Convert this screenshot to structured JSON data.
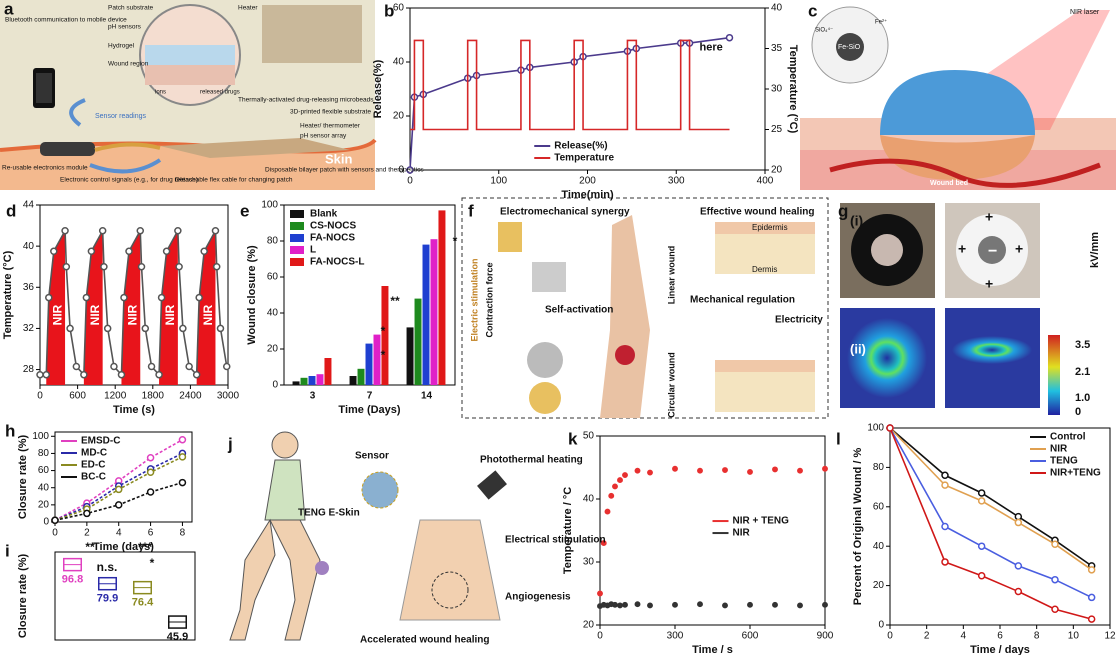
{
  "chart_data": [
    {
      "panel": "b",
      "type": "line",
      "xlabel": "Time(min)",
      "ylabel": "Release(%)",
      "y2label": "Temperature (°C)",
      "xlim": [
        0,
        400
      ],
      "xticks": [
        0,
        100,
        200,
        300,
        400
      ],
      "ylim": [
        0,
        60
      ],
      "yticks": [
        0,
        20,
        40,
        60
      ],
      "y2lim": [
        20,
        40
      ],
      "y2ticks": [
        20,
        25,
        30,
        35,
        40
      ],
      "series": [
        {
          "name": "Release(%)",
          "color": "#4b3a8c",
          "marker": true,
          "x": [
            0,
            5,
            15,
            65,
            75,
            125,
            135,
            185,
            195,
            245,
            255,
            305,
            315,
            360
          ],
          "values": [
            0,
            27,
            28,
            34,
            35,
            37,
            38,
            40,
            42,
            44,
            45,
            47,
            47,
            49
          ]
        },
        {
          "name": "Temperature",
          "color": "#d62728",
          "axis": "y2",
          "x": [
            0,
            5,
            5,
            15,
            15,
            65,
            65,
            75,
            75,
            125,
            125,
            135,
            135,
            185,
            185,
            195,
            195,
            245,
            245,
            255,
            255,
            305,
            305,
            315,
            315,
            360
          ],
          "values": [
            25,
            25,
            36,
            36,
            25,
            25,
            36,
            36,
            25,
            25,
            36,
            36,
            25,
            25,
            36,
            36,
            25,
            25,
            36,
            36,
            25,
            25,
            36,
            36,
            25,
            25
          ]
        }
      ],
      "annotation": "here",
      "legend": "bottom"
    },
    {
      "panel": "d",
      "type": "line",
      "xlabel": "Time (s)",
      "ylabel": "Temperature (°C)",
      "xlim": [
        0,
        3000
      ],
      "xticks": [
        0,
        600,
        1200,
        1800,
        2400,
        3000
      ],
      "ylim": [
        26.5,
        44
      ],
      "yticks": [
        28,
        32,
        36,
        40,
        44
      ],
      "fill": "#e8141b",
      "series": [
        {
          "color": "#555555",
          "marker": true,
          "x": [
            0,
            100,
            140,
            220,
            400,
            420,
            480,
            580,
            700,
            740,
            820,
            1000,
            1020,
            1080,
            1180,
            1300,
            1340,
            1420,
            1600,
            1620,
            1680,
            1780,
            1900,
            1940,
            2020,
            2200,
            2220,
            2280,
            2380,
            2500,
            2540,
            2620,
            2800,
            2820,
            2880,
            2980
          ],
          "values": [
            27.5,
            27.5,
            35,
            39.5,
            41.5,
            38,
            32,
            28.3,
            27.5,
            35,
            39.5,
            41.5,
            38,
            32,
            28.3,
            27.5,
            35,
            39.5,
            41.5,
            38,
            32,
            28.3,
            27.5,
            35,
            39.5,
            41.5,
            38,
            32,
            28.3,
            27.5,
            35,
            39.5,
            41.5,
            38,
            32,
            28.3
          ]
        }
      ],
      "annotations": [
        "NIR",
        "NIR",
        "NIR",
        "NIR",
        "NIR"
      ]
    },
    {
      "panel": "e",
      "type": "bar",
      "xlabel": "Time (Days)",
      "ylabel": "Wound closure (%)",
      "categories": [
        "3",
        "7",
        "14"
      ],
      "ylim": [
        0,
        100
      ],
      "yticks": [
        0,
        20,
        40,
        60,
        80,
        100
      ],
      "legend": "top-left",
      "series": [
        {
          "name": "Blank",
          "color": "#111111",
          "values": [
            2,
            5,
            32
          ]
        },
        {
          "name": "CS-NOCS",
          "color": "#1e8a1e",
          "values": [
            4,
            9,
            48
          ]
        },
        {
          "name": "FA-NOCS",
          "color": "#1f3fd0",
          "values": [
            5,
            23,
            78
          ]
        },
        {
          "name": "L",
          "color": "#e020c8",
          "values": [
            6,
            28,
            81
          ]
        },
        {
          "name": "FA-NOCS-L",
          "color": "#e01818",
          "values": [
            15,
            55,
            97
          ]
        }
      ],
      "significance": [
        "**",
        "*",
        "*",
        "*"
      ]
    },
    {
      "panel": "h",
      "type": "line",
      "xlabel": "Time (days)",
      "ylabel": "Closure rate (%)",
      "x": [
        0,
        2,
        4,
        6,
        8
      ],
      "xlim": [
        0,
        8.6
      ],
      "xticks": [
        0,
        2,
        4,
        6,
        8
      ],
      "ylim": [
        0,
        105
      ],
      "yticks": [
        0,
        20,
        40,
        60,
        80,
        100
      ],
      "legend": "top-left",
      "dashed": true,
      "series": [
        {
          "name": "EMSD-C",
          "color": "#e040c0",
          "marker": true,
          "values": [
            2,
            22,
            48,
            75,
            96
          ]
        },
        {
          "name": "MD-C",
          "color": "#2a2aa8",
          "marker": true,
          "values": [
            2,
            18,
            42,
            62,
            80
          ]
        },
        {
          "name": "ED-C",
          "color": "#8a8a20",
          "marker": true,
          "values": [
            2,
            15,
            38,
            58,
            76
          ]
        },
        {
          "name": "BC-C",
          "color": "#111111",
          "marker": true,
          "values": [
            2,
            10,
            20,
            35,
            46
          ]
        }
      ]
    },
    {
      "panel": "i",
      "type": "box",
      "ylabel": "Closure rate (%)",
      "ylim": [
        30,
        108
      ],
      "values": [
        96.8,
        79.9,
        76.4,
        45.9
      ],
      "colors": [
        "#e040c0",
        "#2a2aa8",
        "#8a8a20",
        "#111111"
      ],
      "significance": [
        "**",
        "n.s.",
        "***",
        "*"
      ]
    },
    {
      "panel": "k",
      "type": "scatter",
      "xlabel": "Time / s",
      "ylabel": "Temperature / °C",
      "xlim": [
        0,
        900
      ],
      "xticks": [
        0,
        300,
        600,
        900
      ],
      "ylim": [
        20,
        50
      ],
      "yticks": [
        20,
        30,
        40,
        50
      ],
      "legend": "right",
      "x": [
        0,
        15,
        30,
        45,
        60,
        80,
        100,
        150,
        200,
        300,
        400,
        500,
        600,
        700,
        800,
        900
      ],
      "series": [
        {
          "name": "NIR + TENG",
          "color": "#e83030",
          "values": [
            25,
            33,
            38,
            40.5,
            42,
            43,
            43.8,
            44.5,
            44.2,
            44.8,
            44.5,
            44.6,
            44.3,
            44.7,
            44.5,
            44.8
          ]
        },
        {
          "name": "NIR",
          "color": "#333333",
          "values": [
            23,
            23.2,
            23.1,
            23.3,
            23.2,
            23.1,
            23.2,
            23.3,
            23.1,
            23.2,
            23.3,
            23.1,
            23.2,
            23.2,
            23.1,
            23.2
          ]
        }
      ]
    },
    {
      "panel": "l",
      "type": "line",
      "xlabel": "Time / days",
      "ylabel": "Percent of Original Wound / %",
      "x": [
        0,
        3,
        5,
        7,
        9,
        11
      ],
      "xlim": [
        0,
        12
      ],
      "xticks": [
        0,
        2,
        4,
        6,
        8,
        10,
        12
      ],
      "ylim": [
        0,
        100
      ],
      "yticks": [
        0,
        20,
        40,
        60,
        80,
        100
      ],
      "legend": "top-right",
      "series": [
        {
          "name": "Control",
          "color": "#111111",
          "marker": true,
          "values": [
            100,
            76,
            67,
            55,
            43,
            30
          ]
        },
        {
          "name": "NIR",
          "color": "#e0a050",
          "marker": true,
          "values": [
            100,
            71,
            63,
            52,
            41,
            28
          ]
        },
        {
          "name": "TENG",
          "color": "#4a5ee0",
          "marker": true,
          "values": [
            100,
            50,
            40,
            30,
            23,
            14
          ]
        },
        {
          "name": "NIR+TENG",
          "color": "#d01818",
          "marker": true,
          "values": [
            100,
            32,
            25,
            17,
            8,
            3
          ]
        }
      ]
    }
  ],
  "diagrams": [
    {
      "label": "a",
      "texts": [
        "Bluetooth communication to mobile device",
        "Patch substrate",
        "pH sensors",
        "Hydrogel",
        "Wound region",
        "ions",
        "released drugs",
        "Heater",
        "Thermally-activated drug-releasing microbeads",
        "3D-printed flexible substrate",
        "Heater/ thermometer",
        "pH sensor array",
        "Sensor readings",
        "Skin",
        "Electronic control signals (e.g., for drug release)",
        "Re-usable electronics module",
        "Detachable flex cable for changing patch",
        "Disposable bilayer patch with sensors and therapeutics"
      ]
    },
    {
      "label": "c",
      "texts": [
        "NIR laser",
        "Fe-SiO",
        "SiO₄⁴⁻",
        "Fe²⁺",
        "Wound bed"
      ]
    },
    {
      "label": "f",
      "texts": [
        "Electromechanical  synergy",
        "Effective wound healing",
        "Electric stimulation",
        "Contraction force",
        "Self-activation",
        "Epidermis",
        "Dermis",
        "Linear wound",
        "Mechanical regulation",
        "Electricity",
        "Circular wound"
      ]
    },
    {
      "label": "g",
      "texts": [
        "(i)",
        "+",
        "−",
        "+",
        "+",
        "+",
        "(ii)",
        "kV/mm",
        "3.5",
        "2.1",
        "1.0",
        "0"
      ]
    },
    {
      "label": "j",
      "texts": [
        "Sensor",
        "Photothermal heating",
        "TENG E-Skin",
        "Electrical stimulation",
        "Angiogenesis",
        "Accelerated wound healing"
      ]
    }
  ]
}
